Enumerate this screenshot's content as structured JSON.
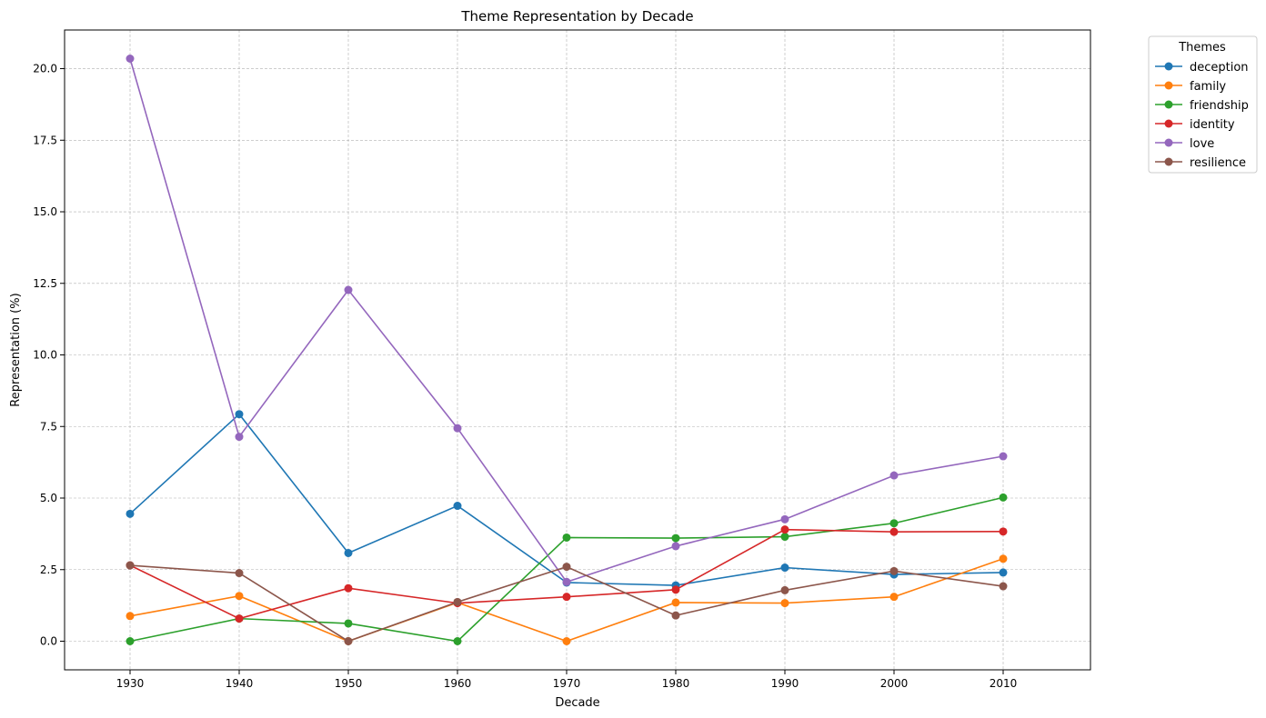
{
  "chart_data": {
    "type": "line",
    "title": "Theme Representation by Decade",
    "xlabel": "Decade",
    "ylabel": "Representation (%)",
    "x": [
      1930,
      1940,
      1950,
      1960,
      1970,
      1980,
      1990,
      2000,
      2010
    ],
    "x_ticks": [
      "1930",
      "1940",
      "1950",
      "1960",
      "1970",
      "1980",
      "1990",
      "2000",
      "2010"
    ],
    "xlim": [
      1924,
      2018
    ],
    "ylim": [
      -1.0,
      21.35
    ],
    "y_ticks": [
      0.0,
      2.5,
      5.0,
      7.5,
      10.0,
      12.5,
      15.0,
      17.5,
      20.0
    ],
    "y_tick_labels": [
      "0.0",
      "2.5",
      "5.0",
      "7.5",
      "10.0",
      "12.5",
      "15.0",
      "17.5",
      "20.0"
    ],
    "grid": true,
    "legend": {
      "title": "Themes",
      "placement": "outside-top-right"
    },
    "series": [
      {
        "name": "deception",
        "color": "#1f77b4",
        "values": [
          4.45,
          7.93,
          3.08,
          4.73,
          2.05,
          1.95,
          2.57,
          2.33,
          2.4
        ]
      },
      {
        "name": "family",
        "color": "#ff7f0e",
        "values": [
          0.88,
          1.58,
          0.0,
          1.35,
          0.0,
          1.35,
          1.33,
          1.55,
          2.88
        ]
      },
      {
        "name": "friendship",
        "color": "#2ca02c",
        "values": [
          0.0,
          0.79,
          0.62,
          0.0,
          3.62,
          3.6,
          3.65,
          4.12,
          5.02
        ]
      },
      {
        "name": "identity",
        "color": "#d62728",
        "values": [
          2.65,
          0.79,
          1.85,
          1.33,
          1.55,
          1.8,
          3.9,
          3.82,
          3.83
        ]
      },
      {
        "name": "love",
        "color": "#9467bd",
        "values": [
          20.35,
          7.14,
          12.27,
          7.44,
          2.07,
          3.32,
          4.26,
          5.79,
          6.46
        ]
      },
      {
        "name": "resilience",
        "color": "#8c564b",
        "values": [
          2.65,
          2.38,
          0.0,
          1.37,
          2.6,
          0.9,
          1.78,
          2.45,
          1.92
        ]
      }
    ]
  }
}
